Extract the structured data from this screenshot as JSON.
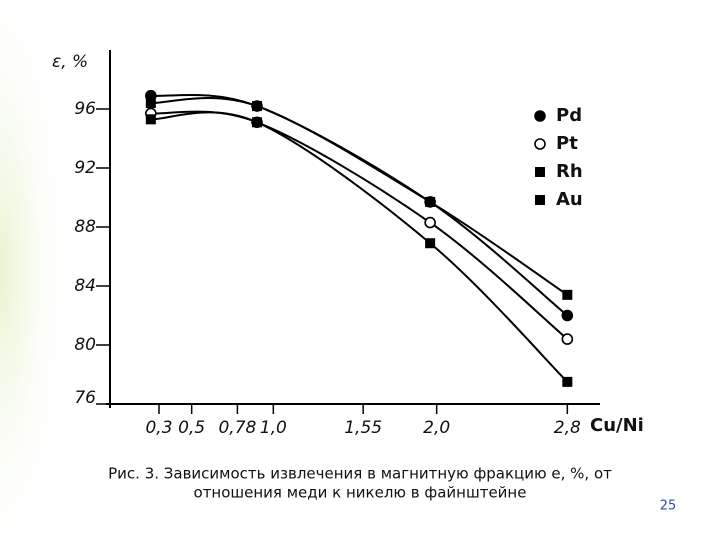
{
  "chart_data": {
    "type": "line",
    "y_label": "ε, %",
    "x_label": "Cu/Ni",
    "xlim": [
      0,
      3
    ],
    "ylim": [
      76,
      100
    ],
    "xticks": [
      {
        "value": 0.3,
        "label": "0,3"
      },
      {
        "value": 0.5,
        "label": "0,5"
      },
      {
        "value": 0.78,
        "label": "0,78"
      },
      {
        "value": 1.0,
        "label": "1,0"
      },
      {
        "value": 1.55,
        "label": "1,55"
      },
      {
        "value": 2.0,
        "label": "2,0"
      },
      {
        "value": 2.8,
        "label": "2,8"
      }
    ],
    "yticks": [
      76,
      80,
      84,
      88,
      92,
      96
    ],
    "x": [
      0.25,
      0.9,
      1.96,
      2.8
    ],
    "series": [
      {
        "name": "Pd",
        "color": "#000000",
        "marker": "filled-circle",
        "values": [
          96.9,
          96.2,
          89.7,
          82.0
        ]
      },
      {
        "name": "Pt",
        "color": "#000000",
        "marker": "open-circle",
        "values": [
          95.7,
          95.1,
          88.3,
          80.4
        ]
      },
      {
        "name": "Rh",
        "color": "#000000",
        "marker": "filled-square",
        "values": [
          96.4,
          96.2,
          89.7,
          83.4
        ]
      },
      {
        "name": "Au",
        "color": "#000000",
        "marker": "filled-square",
        "values": [
          95.3,
          95.1,
          86.9,
          77.5
        ]
      }
    ],
    "legend": "top-right"
  },
  "caption": [
    "Рис. 3. Зависимость извлечения в магнитную фракцию е, %, от",
    "отношения меди к никелю в файнштейне"
  ],
  "page_number": "25"
}
